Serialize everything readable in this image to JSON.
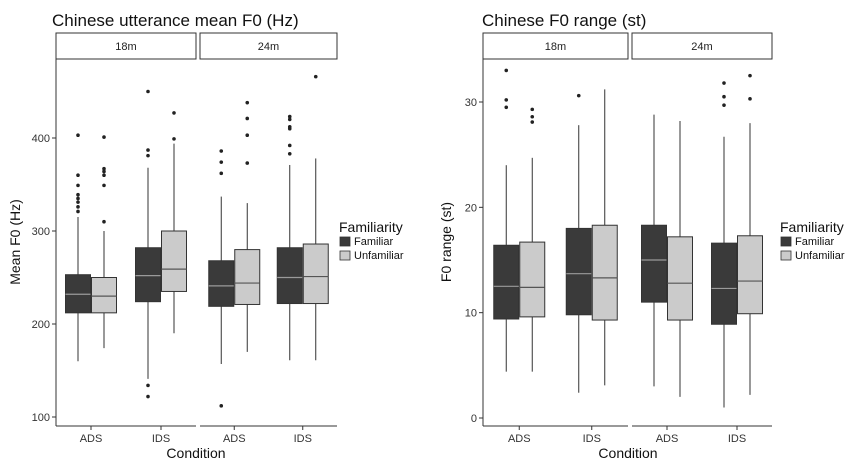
{
  "colors": {
    "familiar": "#3a3a3a",
    "unfamiliar": "#cbcbcb",
    "outline": "#333333",
    "axis": "#333333"
  },
  "chart_data": [
    {
      "type": "boxplot",
      "title": "Chinese utterance mean F0 (Hz)",
      "xlabel": "Condition",
      "ylabel": "Mean F0 (Hz)",
      "ylim": [
        100,
        480
      ],
      "yticks": [
        100,
        200,
        300,
        400
      ],
      "facets": [
        "18m",
        "24m"
      ],
      "categories": [
        "ADS",
        "IDS"
      ],
      "legend": {
        "title": "Familiarity",
        "entries": [
          "Familiar",
          "Unfamiliar"
        ],
        "placement": "right"
      },
      "series": [
        {
          "name": "Familiar",
          "boxes": [
            {
              "facet": "18m",
              "category": "ADS",
              "min": 160,
              "q1": 212,
              "median": 232,
              "q3": 253,
              "max": 315,
              "outliers": [
                321,
                326,
                331,
                335,
                339,
                349,
                360,
                403
              ]
            },
            {
              "facet": "18m",
              "category": "IDS",
              "min": 141,
              "q1": 224,
              "median": 252,
              "q3": 282,
              "max": 368,
              "outliers": [
                122,
                134,
                381,
                387,
                450
              ]
            },
            {
              "facet": "24m",
              "category": "ADS",
              "min": 157,
              "q1": 219,
              "median": 241,
              "q3": 268,
              "max": 337,
              "outliers": [
                112,
                362,
                374,
                386
              ]
            },
            {
              "facet": "24m",
              "category": "IDS",
              "min": 161,
              "q1": 222,
              "median": 250,
              "q3": 282,
              "max": 371,
              "outliers": [
                383,
                392,
                410,
                412,
                420,
                423
              ]
            }
          ]
        },
        {
          "name": "Unfamiliar",
          "boxes": [
            {
              "facet": "18m",
              "category": "ADS",
              "min": 174,
              "q1": 212,
              "median": 230,
              "q3": 250,
              "max": 300,
              "outliers": [
                310,
                349,
                360,
                364,
                367,
                401
              ]
            },
            {
              "facet": "18m",
              "category": "IDS",
              "min": 190,
              "q1": 235,
              "median": 259,
              "q3": 300,
              "max": 394,
              "outliers": [
                399,
                427
              ]
            },
            {
              "facet": "24m",
              "category": "ADS",
              "min": 170,
              "q1": 221,
              "median": 244,
              "q3": 280,
              "max": 330,
              "outliers": [
                373,
                403,
                421,
                438
              ]
            },
            {
              "facet": "24m",
              "category": "IDS",
              "min": 161,
              "q1": 222,
              "median": 251,
              "q3": 286,
              "max": 378,
              "outliers": [
                466
              ]
            }
          ]
        }
      ]
    },
    {
      "type": "boxplot",
      "title": "Chinese F0 range (st)",
      "xlabel": "Condition",
      "ylabel": "F0 range (st)",
      "ylim": [
        0,
        35
      ],
      "yticks": [
        0,
        10,
        20,
        30
      ],
      "facets": [
        "18m",
        "24m"
      ],
      "categories": [
        "ADS",
        "IDS"
      ],
      "legend": {
        "title": "Familiarity",
        "entries": [
          "Familiar",
          "Unfamiliar"
        ],
        "placement": "right"
      },
      "series": [
        {
          "name": "Familiar",
          "boxes": [
            {
              "facet": "18m",
              "category": "ADS",
              "min": 4.4,
              "q1": 9.4,
              "median": 12.5,
              "q3": 16.4,
              "max": 24.0,
              "outliers": [
                29.5,
                30.2,
                33.0
              ]
            },
            {
              "facet": "18m",
              "category": "IDS",
              "min": 2.4,
              "q1": 9.8,
              "median": 13.7,
              "q3": 18.0,
              "max": 27.8,
              "outliers": [
                30.6
              ]
            },
            {
              "facet": "24m",
              "category": "ADS",
              "min": 3.0,
              "q1": 11.0,
              "median": 15.0,
              "q3": 18.3,
              "max": 28.8,
              "outliers": []
            },
            {
              "facet": "24m",
              "category": "IDS",
              "min": 1.0,
              "q1": 8.9,
              "median": 12.3,
              "q3": 16.6,
              "max": 26.7,
              "outliers": [
                29.7,
                30.5,
                31.8
              ]
            }
          ]
        },
        {
          "name": "Unfamiliar",
          "boxes": [
            {
              "facet": "18m",
              "category": "ADS",
              "min": 4.4,
              "q1": 9.6,
              "median": 12.4,
              "q3": 16.7,
              "max": 24.7,
              "outliers": [
                28.1,
                28.6,
                29.3
              ]
            },
            {
              "facet": "18m",
              "category": "IDS",
              "min": 3.1,
              "q1": 9.3,
              "median": 13.3,
              "q3": 18.3,
              "max": 31.2,
              "outliers": []
            },
            {
              "facet": "24m",
              "category": "ADS",
              "min": 2.0,
              "q1": 9.3,
              "median": 12.8,
              "q3": 17.2,
              "max": 28.2,
              "outliers": []
            },
            {
              "facet": "24m",
              "category": "IDS",
              "min": 2.2,
              "q1": 9.9,
              "median": 13.0,
              "q3": 17.3,
              "max": 28.0,
              "outliers": [
                30.3,
                32.5
              ]
            }
          ]
        }
      ]
    }
  ]
}
